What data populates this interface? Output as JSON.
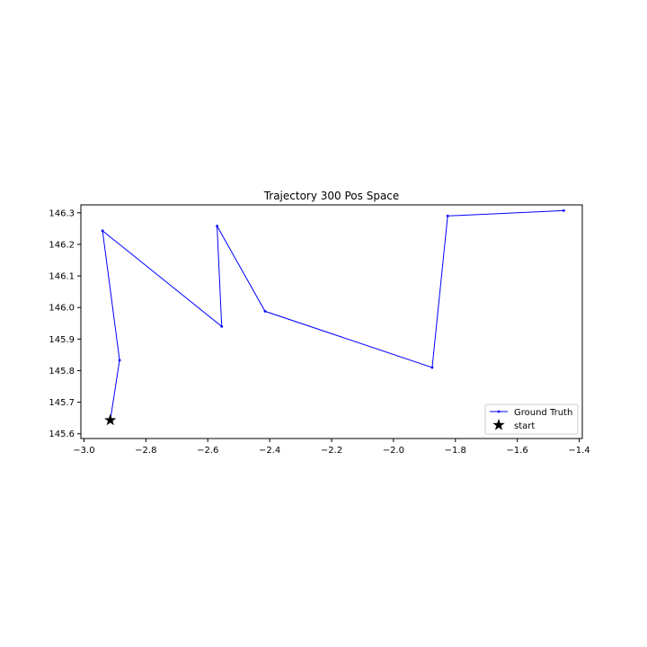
{
  "chart_data": {
    "type": "line",
    "title": "Trajectory 300 Pos Space",
    "xlabel": "",
    "ylabel": "",
    "xlim": [
      -3.01,
      -1.39
    ],
    "ylim": [
      145.585,
      146.325
    ],
    "x_ticks": [
      -3.0,
      -2.8,
      -2.6,
      -2.4,
      -2.2,
      -2.0,
      -1.8,
      -1.6,
      -1.4
    ],
    "x_tick_labels": [
      "−3.0",
      "−2.8",
      "−2.6",
      "−2.4",
      "−2.2",
      "−2.0",
      "−1.8",
      "−1.6",
      "−1.4"
    ],
    "y_ticks": [
      145.6,
      145.7,
      145.8,
      145.9,
      146.0,
      146.1,
      146.2,
      146.3
    ],
    "y_tick_labels": [
      "145.6",
      "145.7",
      "145.8",
      "145.9",
      "146.0",
      "146.1",
      "146.2",
      "146.3"
    ],
    "grid": false,
    "legend_position": "lower-right",
    "series": [
      {
        "name": "Ground Truth",
        "color": "#0000ff",
        "marker": "point",
        "x": [
          -2.915,
          -2.885,
          -2.94,
          -2.555,
          -2.57,
          -2.415,
          -1.875,
          -1.825,
          -1.45
        ],
        "y": [
          145.643,
          145.833,
          146.243,
          145.94,
          146.258,
          145.988,
          145.81,
          146.29,
          146.307
        ]
      }
    ],
    "start_marker": {
      "name": "start",
      "color": "#000000",
      "marker": "star",
      "x": -2.915,
      "y": 145.643
    }
  }
}
